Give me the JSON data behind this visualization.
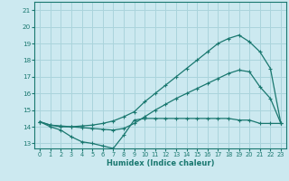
{
  "xlabel": "Humidex (Indice chaleur)",
  "bg_color": "#cce9f0",
  "grid_color": "#aad4dc",
  "line_color": "#1a7870",
  "xlim": [
    -0.5,
    23.5
  ],
  "ylim": [
    12.7,
    21.5
  ],
  "yticks": [
    13,
    14,
    15,
    16,
    17,
    18,
    19,
    20,
    21
  ],
  "xticks": [
    0,
    1,
    2,
    3,
    4,
    5,
    6,
    7,
    8,
    9,
    10,
    11,
    12,
    13,
    14,
    15,
    16,
    17,
    18,
    19,
    20,
    21,
    22,
    23
  ],
  "line1_x": [
    0,
    1,
    2,
    3,
    4,
    5,
    6,
    7,
    8,
    9,
    10,
    11,
    12,
    13,
    14,
    15,
    16,
    17,
    18,
    19,
    20,
    21,
    22,
    23
  ],
  "line1_y": [
    14.3,
    14.0,
    13.8,
    13.4,
    13.1,
    13.0,
    12.85,
    12.7,
    13.5,
    14.4,
    14.5,
    14.5,
    14.5,
    14.5,
    14.5,
    14.5,
    14.5,
    14.5,
    14.5,
    14.4,
    14.4,
    14.2,
    14.2,
    14.2
  ],
  "line2_x": [
    0,
    1,
    2,
    3,
    4,
    5,
    6,
    7,
    8,
    9,
    10,
    11,
    12,
    13,
    14,
    15,
    16,
    17,
    18,
    19,
    20,
    21,
    22,
    23
  ],
  "line2_y": [
    14.3,
    14.1,
    14.05,
    14.0,
    13.95,
    13.9,
    13.85,
    13.8,
    13.9,
    14.2,
    14.6,
    15.0,
    15.35,
    15.7,
    16.0,
    16.3,
    16.6,
    16.9,
    17.2,
    17.4,
    17.3,
    16.4,
    15.7,
    14.2
  ],
  "line3_x": [
    0,
    1,
    2,
    3,
    4,
    5,
    6,
    7,
    8,
    9,
    10,
    11,
    12,
    13,
    14,
    15,
    16,
    17,
    18,
    19,
    20,
    21,
    22,
    23
  ],
  "line3_y": [
    14.3,
    14.1,
    14.0,
    14.0,
    14.05,
    14.1,
    14.2,
    14.35,
    14.6,
    14.9,
    15.5,
    16.0,
    16.5,
    17.0,
    17.5,
    18.0,
    18.5,
    19.0,
    19.3,
    19.5,
    19.1,
    18.5,
    17.5,
    14.2
  ]
}
